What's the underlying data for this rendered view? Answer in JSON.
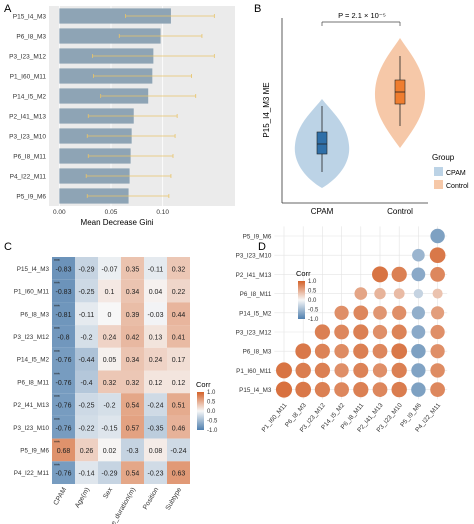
{
  "panels": {
    "A": "A",
    "B": "B",
    "C": "C",
    "D": "D"
  },
  "chart_data": [
    {
      "panel": "A",
      "type": "bar",
      "orientation": "horizontal",
      "categories": [
        "P15_I4_M3",
        "P6_I8_M3",
        "P3_I23_M12",
        "P1_I60_M11",
        "P14_I5_M2",
        "P2_I41_M13",
        "P3_I23_M10",
        "P6_I8_M11",
        "P4_I22_M11",
        "P5_I9_M6"
      ],
      "values": [
        0.108,
        0.098,
        0.091,
        0.09,
        0.086,
        0.072,
        0.07,
        0.069,
        0.068,
        0.067
      ],
      "error_low": [
        0.064,
        0.058,
        0.032,
        0.033,
        0.04,
        0.028,
        0.027,
        0.028,
        0.026,
        0.027
      ],
      "error_high": [
        0.15,
        0.138,
        0.15,
        0.128,
        0.132,
        0.114,
        0.112,
        0.11,
        0.108,
        0.106
      ],
      "xticks": [
        "0.00",
        "0.05",
        "0.10"
      ],
      "xlim": [
        -0.01,
        0.17
      ],
      "xlabel": "Mean Decrease Gini",
      "bar_color": "#8ea4b5",
      "error_color": "#e8c46a"
    },
    {
      "panel": "B",
      "type": "violin",
      "categories": [
        "CPAM",
        "Control"
      ],
      "ylabel": "P15_I4_M3 ME",
      "annotation": "P = 2.1 × 10⁻⁵",
      "legend_title": "Group",
      "legend_placement": "right",
      "series": [
        {
          "name": "CPAM",
          "fill": "#bcd3e6",
          "box": "#2f6fa8",
          "median": -0.16,
          "q1": -0.21,
          "q3": -0.1,
          "min": -0.25,
          "max": -0.02
        },
        {
          "name": "Control",
          "fill": "#f6c8a8",
          "box": "#ef7d2f",
          "median": 0.24,
          "q1": 0.19,
          "q3": 0.3,
          "min": 0.1,
          "max": 0.36
        }
      ]
    },
    {
      "panel": "C",
      "type": "heatmap",
      "rows": [
        "P15_I4_M3",
        "P1_I60_M11",
        "P6_I8_M3",
        "P3_I23_M12",
        "P14_I5_M2",
        "P6_I8_M11",
        "P2_I41_M13",
        "P3_I23_M10",
        "P5_I9_M6",
        "P4_I22_M11"
      ],
      "columns": [
        "CPAM",
        "Age(m)",
        "Sex",
        "Disease_duration(m)",
        "Position",
        "Subtype"
      ],
      "values": [
        [
          -0.83,
          -0.29,
          -0.07,
          0.35,
          -0.11,
          0.32
        ],
        [
          -0.83,
          -0.25,
          0.1,
          0.34,
          0.04,
          0.22
        ],
        [
          -0.81,
          -0.11,
          0,
          0.39,
          -0.03,
          0.44
        ],
        [
          -0.8,
          -0.2,
          0.24,
          0.42,
          0.13,
          0.41
        ],
        [
          -0.76,
          -0.44,
          0.05,
          0.34,
          0.24,
          0.17
        ],
        [
          -0.76,
          -0.4,
          0.32,
          0.32,
          0.12,
          0.12
        ],
        [
          -0.76,
          -0.25,
          -0.2,
          0.54,
          -0.24,
          0.51
        ],
        [
          -0.76,
          -0.22,
          -0.15,
          0.57,
          -0.35,
          0.46
        ],
        [
          0.68,
          0.26,
          0.02,
          -0.3,
          0.08,
          -0.24
        ],
        [
          -0.76,
          -0.14,
          -0.29,
          0.54,
          -0.23,
          0.63
        ]
      ],
      "significance": "***",
      "legend_title": "Corr",
      "legend_ticks": [
        "1.0",
        "0.5",
        "0.0",
        "-0.5",
        "-1.0"
      ]
    },
    {
      "panel": "D",
      "type": "scatter",
      "subtype": "correlation_dot_matrix",
      "rows": [
        "P5_I9_M6",
        "P3_I23_M10",
        "P2_I41_M13",
        "P6_I8_M11",
        "P14_I5_M2",
        "P3_I23_M12",
        "P6_I8_M3",
        "P1_I60_M11",
        "P15_I4_M3"
      ],
      "columns": [
        "P1_I60_M11",
        "P6_I8_M3",
        "P3_I23_M12",
        "P14_I5_M2",
        "P6_I8_M11",
        "P2_I41_M13",
        "P3_I23_M10",
        "P5_I9_M6",
        "P4_I22_M11"
      ],
      "values": [
        [
          null,
          null,
          null,
          null,
          null,
          null,
          null,
          null,
          -0.72
        ],
        [
          null,
          null,
          null,
          null,
          null,
          null,
          null,
          -0.55,
          0.85
        ],
        [
          null,
          null,
          null,
          null,
          null,
          0.88,
          0.8,
          -0.65,
          0.75
        ],
        [
          null,
          null,
          null,
          null,
          0.55,
          0.45,
          0.4,
          -0.3,
          0.35
        ],
        [
          null,
          null,
          null,
          0.7,
          0.75,
          0.65,
          0.7,
          -0.6,
          0.6
        ],
        [
          null,
          null,
          0.8,
          0.75,
          0.8,
          0.7,
          0.78,
          -0.65,
          0.7
        ],
        [
          null,
          0.85,
          0.78,
          0.72,
          0.8,
          0.75,
          0.85,
          -0.72,
          0.7
        ],
        [
          0.88,
          0.82,
          0.8,
          0.7,
          0.78,
          0.7,
          0.8,
          -0.7,
          0.72
        ],
        [
          0.9,
          0.85,
          0.8,
          0.75,
          0.8,
          0.75,
          0.82,
          -0.72,
          0.75
        ]
      ],
      "legend_title": "Corr",
      "legend_ticks": [
        "1.0",
        "0.5",
        "0.0",
        "-0.5",
        "-1.0"
      ]
    }
  ]
}
